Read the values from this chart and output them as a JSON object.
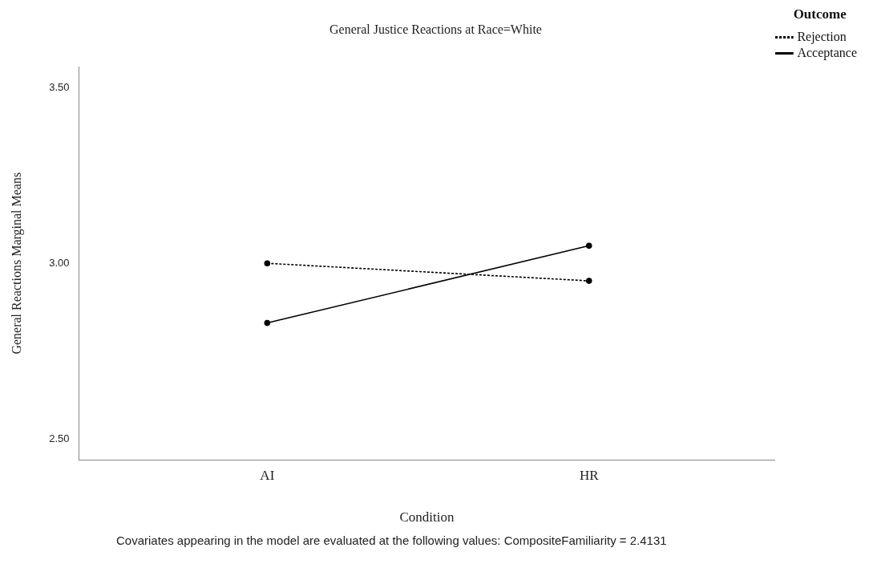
{
  "chart_data": {
    "type": "line",
    "title": "General Justice Reactions at Race=White",
    "xlabel": "Condition",
    "ylabel": "General Reactions Marginal Means",
    "legend_title": "Outcome",
    "categories": [
      "AI",
      "HR"
    ],
    "series": [
      {
        "name": "Rejection",
        "color": "#000000",
        "values": [
          3.0,
          2.95
        ],
        "line_style": "dotted"
      },
      {
        "name": "Acceptance",
        "color": "#000000",
        "values": [
          2.83,
          3.05
        ],
        "line_style": "solid"
      }
    ],
    "ylim": [
      2.44,
      3.56
    ],
    "yticks": [
      {
        "value": 2.5,
        "label": "2.50"
      },
      {
        "value": 3.0,
        "label": "3.00"
      },
      {
        "value": 3.5,
        "label": "3.50"
      }
    ],
    "grid": false,
    "legend": "top right",
    "marker": "circle",
    "annotations": [
      "Covariates appearing in the model are evaluated at the following values: CompositeFamiliarity = 2.4131"
    ]
  }
}
